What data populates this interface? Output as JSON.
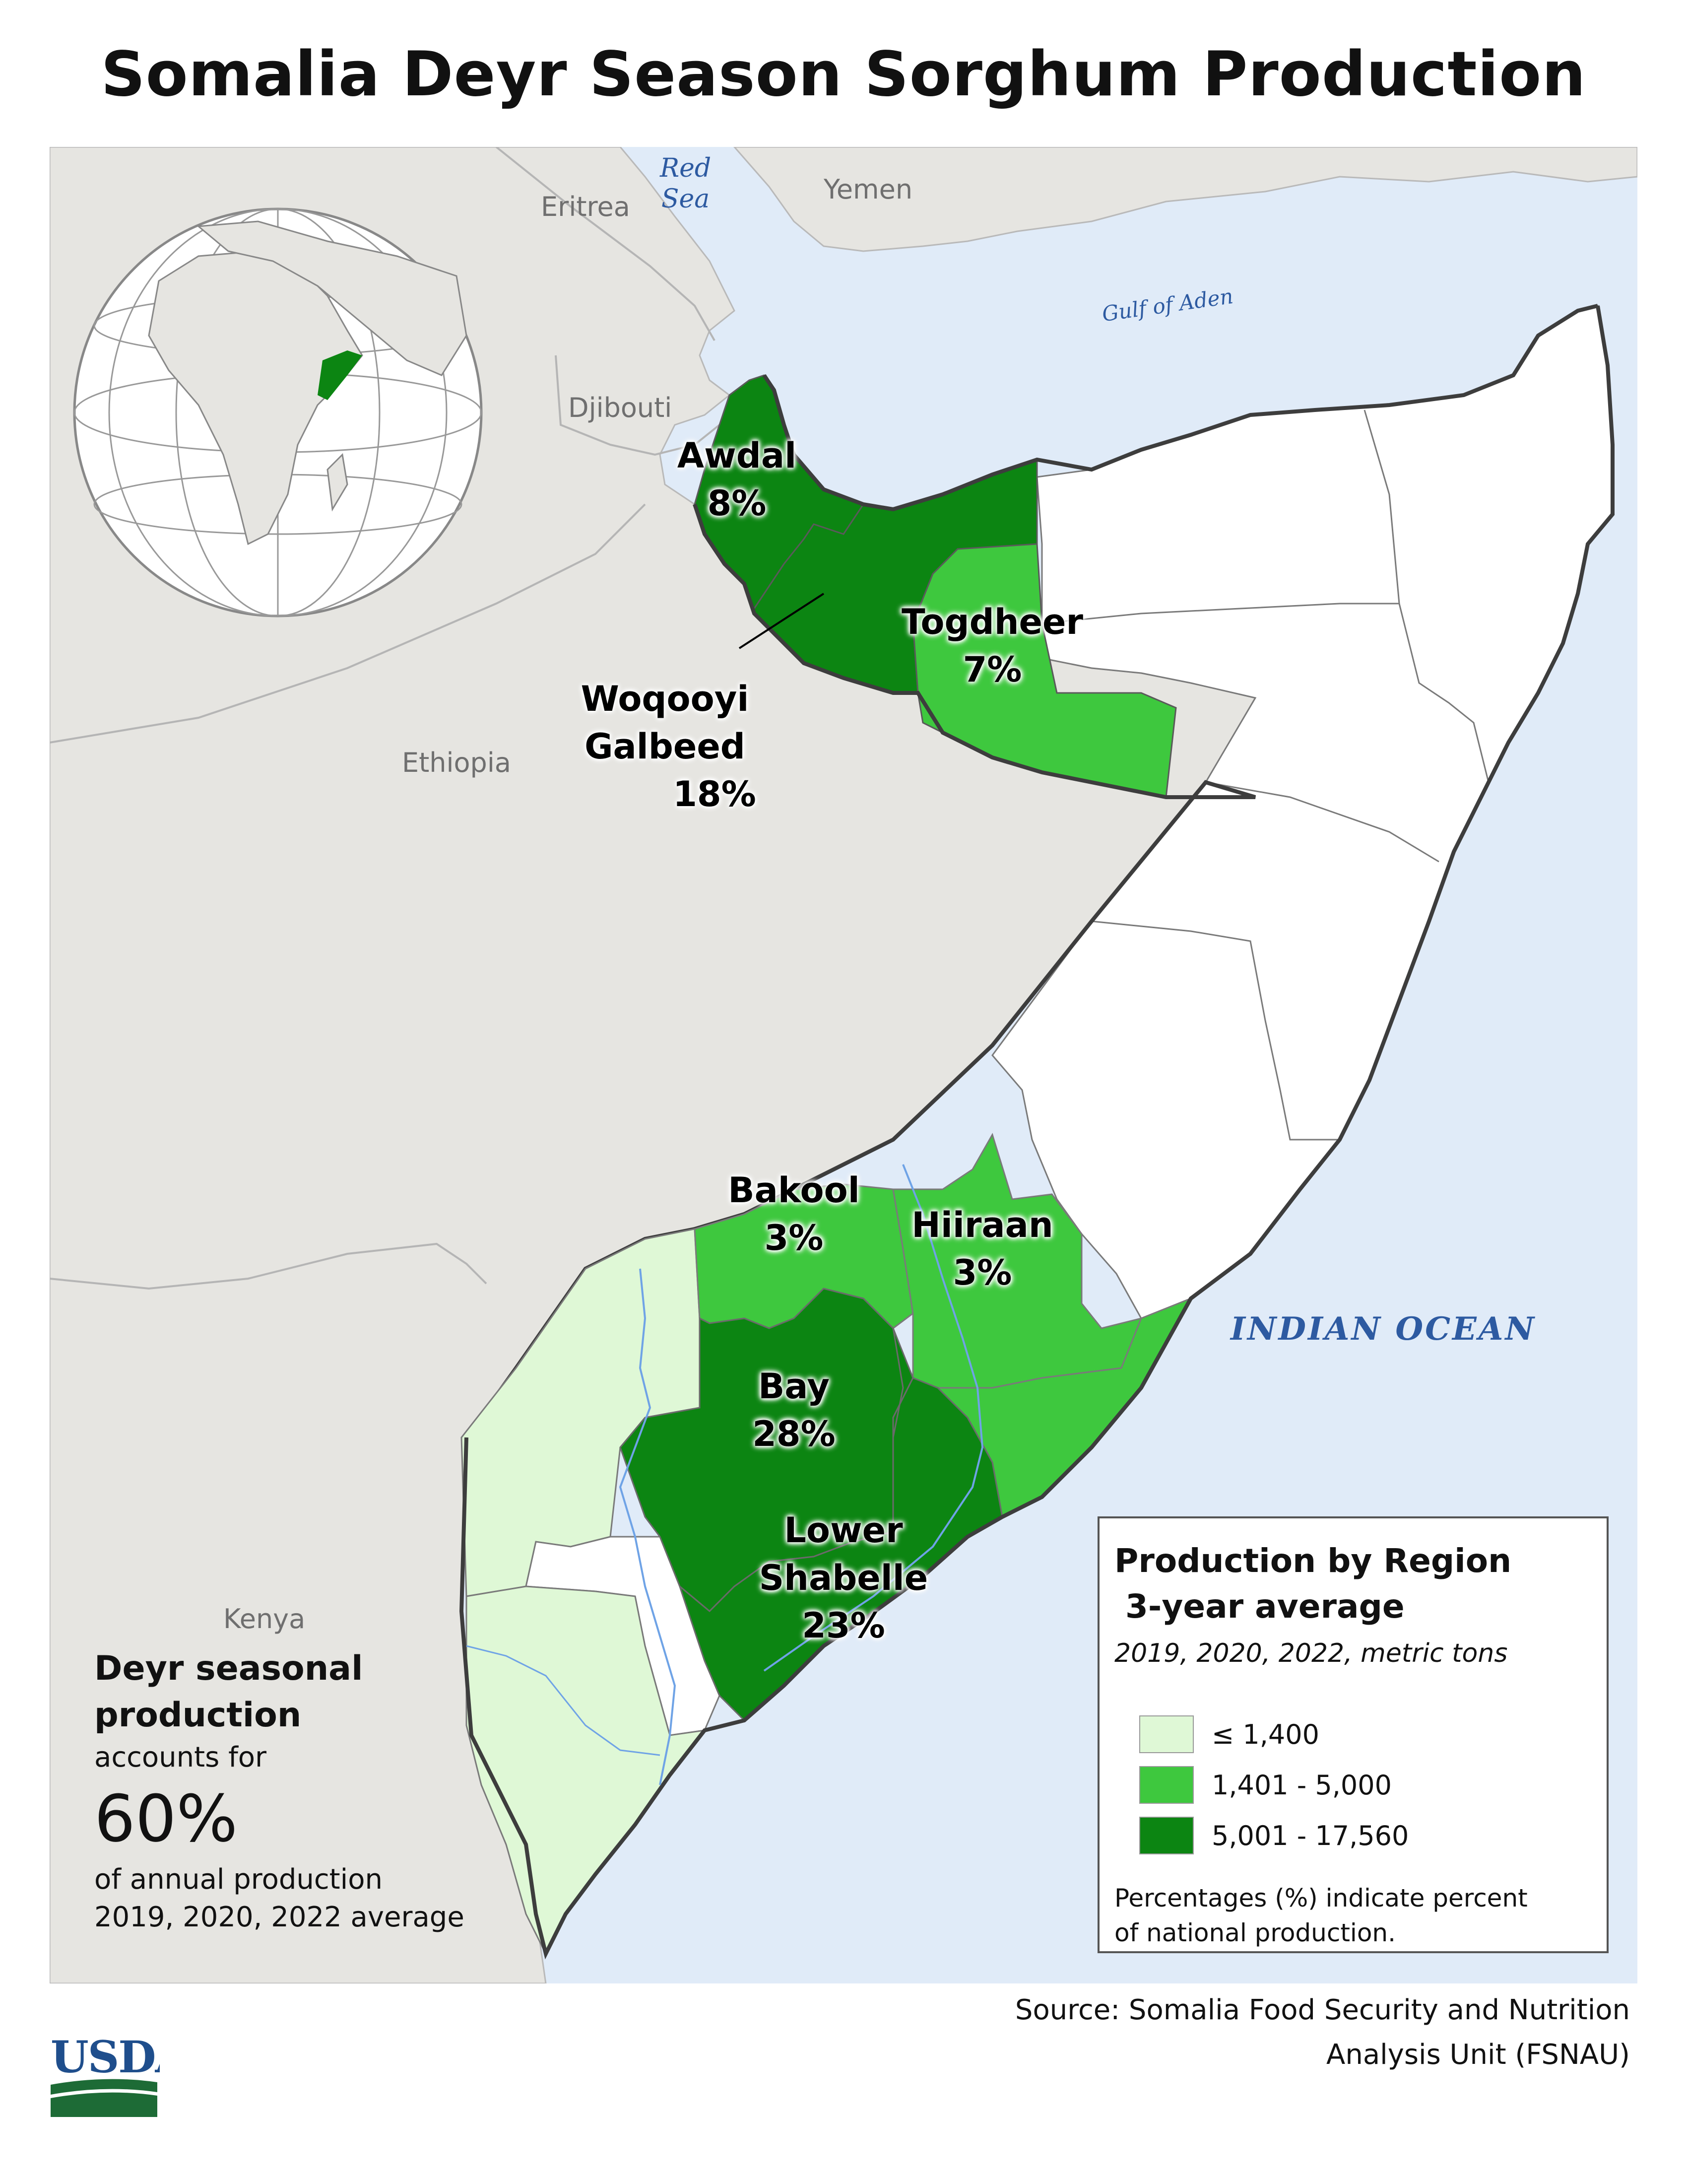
{
  "title": "Somalia Deyr Season Sorghum Production",
  "colors": {
    "land": "#e6e5e1",
    "water": "#e0ebf8",
    "low": "#dff8d6",
    "medium": "#3ec83e",
    "high": "#0c8512",
    "no_data": "#ffffff",
    "border": "#3d3d3d",
    "river": "#6fa3e6",
    "usda_blue": "#1f4e8c",
    "usda_green": "#1d6b36"
  },
  "countries": {
    "eritrea": "Eritrea",
    "yemen": "Yemen",
    "djibouti": "Djibouti",
    "ethiopia": "Ethiopia",
    "kenya": "Kenya"
  },
  "water_bodies": {
    "red_sea_line1": "Red",
    "red_sea_line2": "Sea",
    "gulf_of_aden": "Gulf of Aden",
    "indian_ocean": "INDIAN OCEAN"
  },
  "regions": {
    "awdal": {
      "name": "Awdal",
      "pct": "8%",
      "class": "high"
    },
    "woqooyi": {
      "name_line1": "Woqooyi",
      "name_line2": "Galbeed",
      "pct": "18%",
      "class": "high"
    },
    "togdheer": {
      "name": "Togdheer",
      "pct": "7%",
      "class": "medium"
    },
    "bakool": {
      "name": "Bakool",
      "pct": "3%",
      "class": "medium"
    },
    "hiiraan": {
      "name": "Hiiraan",
      "pct": "3%",
      "class": "medium"
    },
    "bay": {
      "name": "Bay",
      "pct": "28%",
      "class": "high"
    },
    "lower_shabelle": {
      "name_line1": "Lower",
      "name_line2": "Shabelle",
      "pct": "23%",
      "class": "high"
    }
  },
  "legend": {
    "title": "Production by Region",
    "subtitle": "3-year average",
    "note": "2019, 2020, 2022, metric tons",
    "items": [
      {
        "label": "≤ 1,400",
        "color": "#dff8d6"
      },
      {
        "label": "1,401 - 5,000",
        "color": "#3ec83e"
      },
      {
        "label": "5,001 - 17,560",
        "color": "#0c8512"
      }
    ],
    "footnote_line1": "Percentages (%) indicate percent",
    "footnote_line2": "of national production."
  },
  "callout": {
    "heading_line1": "Deyr seasonal",
    "heading_line2": "production",
    "text1": "accounts for",
    "percent": "60%",
    "text2": "of annual production",
    "text3": "2019, 2020, 2022 average"
  },
  "source": {
    "line1": "Source: Somalia Food Security and Nutrition",
    "line2": "Analysis Unit (FSNAU)"
  },
  "logo": "USDA"
}
